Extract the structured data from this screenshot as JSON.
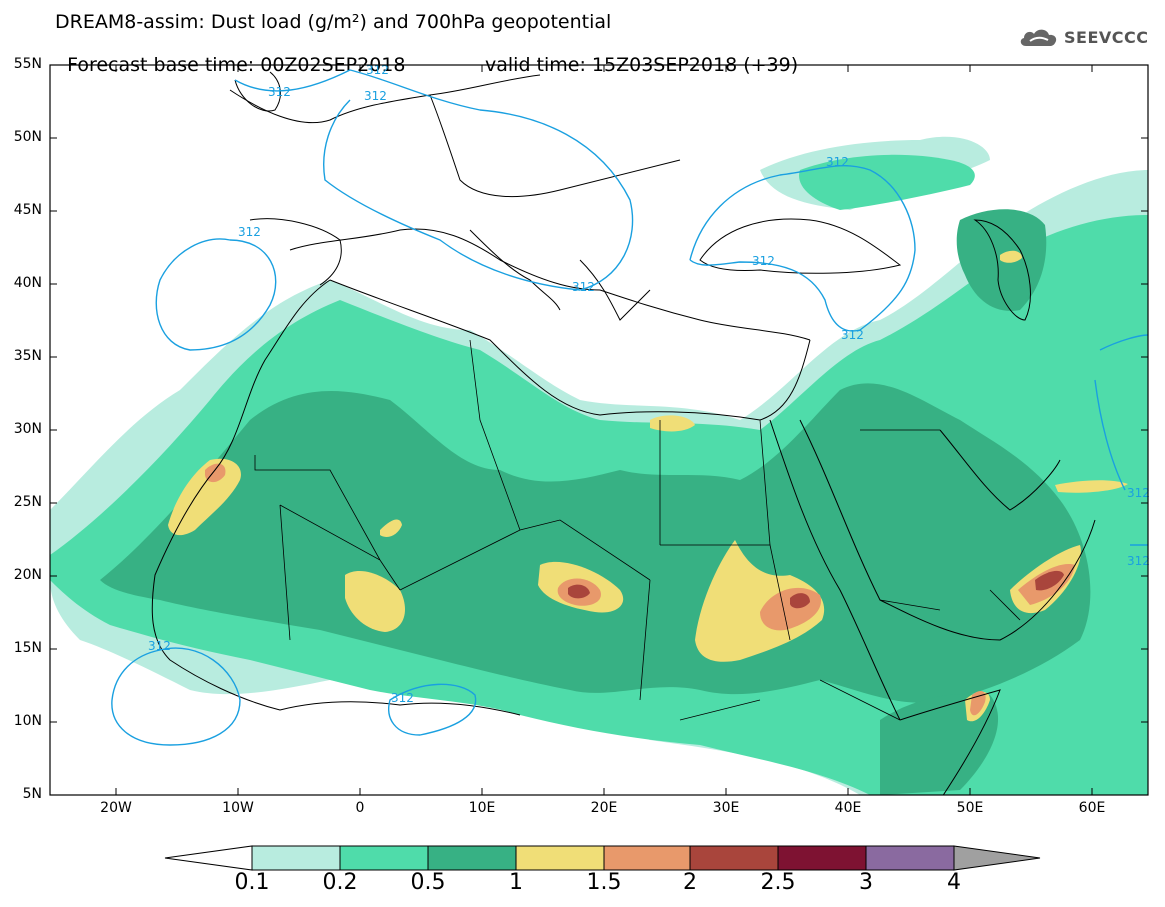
{
  "header": {
    "title_line1": "DREAM8-assim: Dust load (g/m²) and 700hPa geopotential",
    "base_time": "Forecast base time: 00Z02SEP2018",
    "valid_time": "valid time: 15Z03SEP2018 (+39)"
  },
  "logo": {
    "text": "SEEVCCC",
    "icon": "cloud-icon"
  },
  "map": {
    "lat_labels": [
      "55N",
      "50N",
      "45N",
      "40N",
      "35N",
      "30N",
      "25N",
      "20N",
      "15N",
      "10N",
      "5N"
    ],
    "lon_labels": [
      "20W",
      "10W",
      "0",
      "10E",
      "20E",
      "30E",
      "40E",
      "50E",
      "60E"
    ],
    "contour_label": "312",
    "contour_color": "#1aa0e0"
  },
  "legend": {
    "ticks": [
      "0.1",
      "0.2",
      "0.5",
      "1",
      "1.5",
      "2",
      "2.5",
      "3",
      "4"
    ],
    "colors": [
      "#b8ecdf",
      "#4fdcaa",
      "#37b184",
      "#f0de77",
      "#e8996b",
      "#d86e5c",
      "#a9453c",
      "#7e1232",
      "#8a6aa0",
      "#a0a0a0"
    ]
  }
}
